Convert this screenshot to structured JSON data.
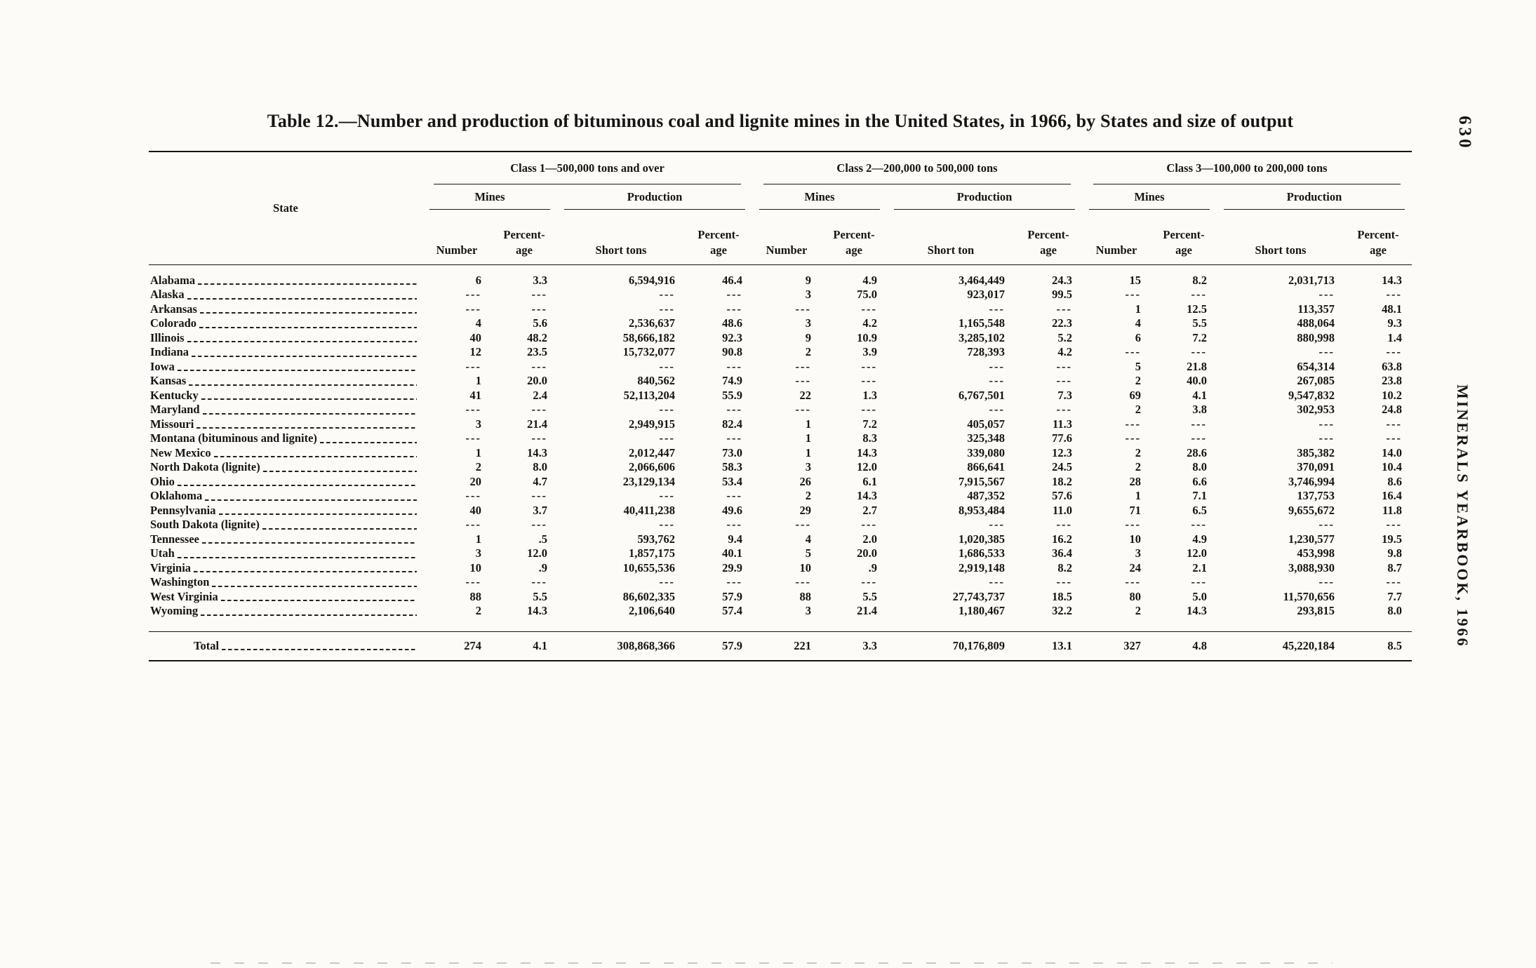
{
  "page": {
    "title": "Table 12.—Number and production of bituminous coal and lignite mines in the United States, in 1966, by States and size of output",
    "page_number": "630",
    "running_title": "MINERALS YEARBOOK, 1966"
  },
  "table": {
    "state_header": "State",
    "classes": [
      {
        "title": "Class 1—500,000 tons and over",
        "mines": "Mines",
        "production": "Production",
        "columns": [
          "Number",
          "Percent-\nage",
          "Short tons",
          "Percent-\nage"
        ]
      },
      {
        "title": "Class 2—200,000 to 500,000 tons",
        "mines": "Mines",
        "production": "Production",
        "columns": [
          "Number",
          "Percent-\nage",
          "Short ton",
          "Percent-\nage"
        ]
      },
      {
        "title": "Class 3—100,000 to 200,000 tons",
        "mines": "Mines",
        "production": "Production",
        "columns": [
          "Number",
          "Percent-\nage",
          "Short tons",
          "Percent-\nage"
        ]
      }
    ],
    "rows": [
      {
        "state": "Alabama",
        "values": [
          "6",
          "3.3",
          "6,594,916",
          "46.4",
          "9",
          "4.9",
          "3,464,449",
          "24.3",
          "15",
          "8.2",
          "2,031,713",
          "14.3"
        ]
      },
      {
        "state": "Alaska",
        "values": [
          "---",
          "---",
          "---",
          "---",
          "3",
          "75.0",
          "923,017",
          "99.5",
          "---",
          "---",
          "---",
          "---"
        ]
      },
      {
        "state": "Arkansas",
        "values": [
          "---",
          "---",
          "---",
          "---",
          "---",
          "---",
          "---",
          "---",
          "1",
          "12.5",
          "113,357",
          "48.1"
        ]
      },
      {
        "state": "Colorado",
        "values": [
          "4",
          "5.6",
          "2,536,637",
          "48.6",
          "3",
          "4.2",
          "1,165,548",
          "22.3",
          "4",
          "5.5",
          "488,064",
          "9.3"
        ]
      },
      {
        "state": "Illinois",
        "values": [
          "40",
          "48.2",
          "58,666,182",
          "92.3",
          "9",
          "10.9",
          "3,285,102",
          "5.2",
          "6",
          "7.2",
          "880,998",
          "1.4"
        ]
      },
      {
        "state": "Indiana",
        "values": [
          "12",
          "23.5",
          "15,732,077",
          "90.8",
          "2",
          "3.9",
          "728,393",
          "4.2",
          "---",
          "---",
          "---",
          "---"
        ]
      },
      {
        "state": "Iowa",
        "values": [
          "---",
          "---",
          "---",
          "---",
          "---",
          "---",
          "---",
          "---",
          "5",
          "21.8",
          "654,314",
          "63.8"
        ]
      },
      {
        "state": "Kansas",
        "values": [
          "1",
          "20.0",
          "840,562",
          "74.9",
          "---",
          "---",
          "---",
          "---",
          "2",
          "40.0",
          "267,085",
          "23.8"
        ]
      },
      {
        "state": "Kentucky",
        "values": [
          "41",
          "2.4",
          "52,113,204",
          "55.9",
          "22",
          "1.3",
          "6,767,501",
          "7.3",
          "69",
          "4.1",
          "9,547,832",
          "10.2"
        ]
      },
      {
        "state": "Maryland",
        "values": [
          "---",
          "---",
          "---",
          "---",
          "---",
          "---",
          "---",
          "---",
          "2",
          "3.8",
          "302,953",
          "24.8"
        ]
      },
      {
        "state": "Missouri",
        "values": [
          "3",
          "21.4",
          "2,949,915",
          "82.4",
          "1",
          "7.2",
          "405,057",
          "11.3",
          "---",
          "---",
          "---",
          "---"
        ]
      },
      {
        "state": "Montana (bituminous and lignite)",
        "values": [
          "---",
          "---",
          "---",
          "---",
          "1",
          "8.3",
          "325,348",
          "77.6",
          "---",
          "---",
          "---",
          "---"
        ]
      },
      {
        "state": "New Mexico",
        "values": [
          "1",
          "14.3",
          "2,012,447",
          "73.0",
          "1",
          "14.3",
          "339,080",
          "12.3",
          "2",
          "28.6",
          "385,382",
          "14.0"
        ]
      },
      {
        "state": "North Dakota (lignite)",
        "values": [
          "2",
          "8.0",
          "2,066,606",
          "58.3",
          "3",
          "12.0",
          "866,641",
          "24.5",
          "2",
          "8.0",
          "370,091",
          "10.4"
        ]
      },
      {
        "state": "Ohio",
        "values": [
          "20",
          "4.7",
          "23,129,134",
          "53.4",
          "26",
          "6.1",
          "7,915,567",
          "18.2",
          "28",
          "6.6",
          "3,746,994",
          "8.6"
        ]
      },
      {
        "state": "Oklahoma",
        "values": [
          "---",
          "---",
          "---",
          "---",
          "2",
          "14.3",
          "487,352",
          "57.6",
          "1",
          "7.1",
          "137,753",
          "16.4"
        ]
      },
      {
        "state": "Pennsylvania",
        "values": [
          "40",
          "3.7",
          "40,411,238",
          "49.6",
          "29",
          "2.7",
          "8,953,484",
          "11.0",
          "71",
          "6.5",
          "9,655,672",
          "11.8"
        ]
      },
      {
        "state": "South Dakota (lignite)",
        "values": [
          "---",
          "---",
          "---",
          "---",
          "---",
          "---",
          "---",
          "---",
          "---",
          "---",
          "---",
          "---"
        ]
      },
      {
        "state": "Tennessee",
        "values": [
          "1",
          ".5",
          "593,762",
          "9.4",
          "4",
          "2.0",
          "1,020,385",
          "16.2",
          "10",
          "4.9",
          "1,230,577",
          "19.5"
        ]
      },
      {
        "state": "Utah",
        "values": [
          "3",
          "12.0",
          "1,857,175",
          "40.1",
          "5",
          "20.0",
          "1,686,533",
          "36.4",
          "3",
          "12.0",
          "453,998",
          "9.8"
        ]
      },
      {
        "state": "Virginia",
        "values": [
          "10",
          ".9",
          "10,655,536",
          "29.9",
          "10",
          ".9",
          "2,919,148",
          "8.2",
          "24",
          "2.1",
          "3,088,930",
          "8.7"
        ]
      },
      {
        "state": "Washington",
        "values": [
          "---",
          "---",
          "---",
          "---",
          "---",
          "---",
          "---",
          "---",
          "---",
          "---",
          "---",
          "---"
        ]
      },
      {
        "state": "West Virginia",
        "values": [
          "88",
          "5.5",
          "86,602,335",
          "57.9",
          "88",
          "5.5",
          "27,743,737",
          "18.5",
          "80",
          "5.0",
          "11,570,656",
          "7.7"
        ]
      },
      {
        "state": "Wyoming",
        "values": [
          "2",
          "14.3",
          "2,106,640",
          "57.4",
          "3",
          "21.4",
          "1,180,467",
          "32.2",
          "2",
          "14.3",
          "293,815",
          "8.0"
        ]
      }
    ],
    "total": {
      "state": "Total",
      "values": [
        "274",
        "4.1",
        "308,868,366",
        "57.9",
        "221",
        "3.3",
        "70,176,809",
        "13.1",
        "327",
        "4.8",
        "45,220,184",
        "8.5"
      ]
    }
  }
}
